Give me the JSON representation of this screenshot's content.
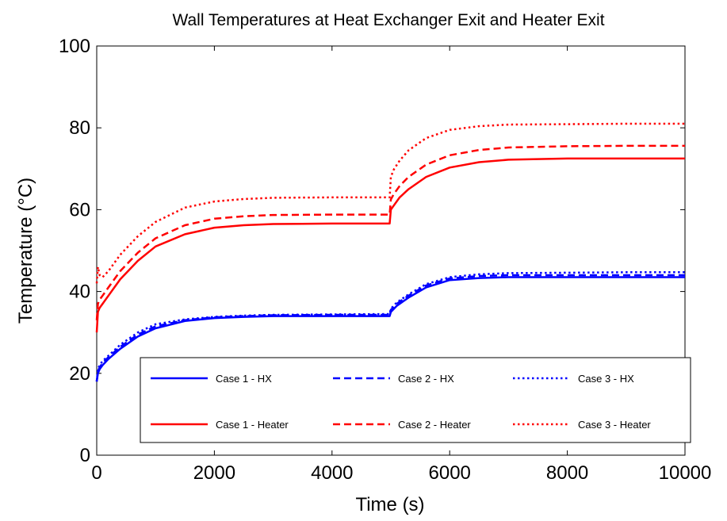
{
  "chart_data": {
    "type": "line",
    "title": "Wall Temperatures at Heat Exchanger Exit and Heater Exit",
    "xlabel": "Time (s)",
    "ylabel": "Temperature (°C)",
    "xlim": [
      0,
      10000
    ],
    "ylim": [
      0,
      100
    ],
    "xticks": [
      "0",
      "2000",
      "4000",
      "6000",
      "8000",
      "10000"
    ],
    "yticks": [
      "0",
      "20",
      "40",
      "60",
      "80",
      "100"
    ],
    "grid": false,
    "legend_position": "bottom-right",
    "series": [
      {
        "name": "Case 1 - HX",
        "color": "#0000ff",
        "dash": "solid",
        "x": [
          0,
          20,
          50,
          100,
          200,
          400,
          700,
          1000,
          1500,
          2000,
          2500,
          3000,
          4000,
          4980,
          5000,
          5100,
          5300,
          5600,
          6000,
          6500,
          7000,
          8000,
          9000,
          10000
        ],
        "y": [
          18,
          20,
          21,
          22,
          23.5,
          26,
          29,
          31,
          32.8,
          33.5,
          33.8,
          34,
          34,
          34,
          35,
          36.5,
          38.5,
          41,
          42.8,
          43.3,
          43.5,
          43.5,
          43.5,
          43.5
        ]
      },
      {
        "name": "Case 2 - HX",
        "color": "#0000ff",
        "dash": "dashed",
        "x": [
          0,
          20,
          50,
          100,
          200,
          400,
          700,
          1000,
          1500,
          2000,
          2500,
          3000,
          4000,
          4980,
          5000,
          5100,
          5300,
          5600,
          6000,
          6500,
          7000,
          8000,
          9000,
          10000
        ],
        "y": [
          18,
          20.5,
          21.5,
          22.5,
          24,
          26.5,
          29.5,
          31.5,
          33,
          33.7,
          34,
          34.2,
          34.3,
          34.3,
          35.5,
          37,
          39,
          41.5,
          43.2,
          43.8,
          44,
          44,
          44,
          44
        ]
      },
      {
        "name": "Case 3 - HX",
        "color": "#0000ff",
        "dash": "dotted",
        "x": [
          0,
          20,
          50,
          100,
          200,
          400,
          700,
          1000,
          1500,
          2000,
          2500,
          3000,
          4000,
          4980,
          5000,
          5100,
          5300,
          5600,
          6000,
          6500,
          7000,
          8000,
          9000,
          10000
        ],
        "y": [
          18,
          21,
          22,
          23,
          24.3,
          27,
          30,
          32,
          33.2,
          33.8,
          34.1,
          34.3,
          34.4,
          34.5,
          35.8,
          37.3,
          39.3,
          41.8,
          43.5,
          44.2,
          44.5,
          44.6,
          44.7,
          44.7
        ]
      },
      {
        "name": "Case 1 - Heater",
        "color": "#ff0000",
        "dash": "solid",
        "x": [
          0,
          20,
          50,
          100,
          200,
          400,
          700,
          1000,
          1500,
          2000,
          2500,
          3000,
          4000,
          4980,
          5000,
          5050,
          5150,
          5300,
          5600,
          6000,
          6500,
          7000,
          8000,
          9000,
          10000
        ],
        "y": [
          30,
          35,
          36,
          37,
          39,
          43,
          47.5,
          51,
          54,
          55.6,
          56.2,
          56.5,
          56.6,
          56.6,
          60,
          61,
          63,
          65,
          68,
          70.3,
          71.6,
          72.2,
          72.5,
          72.5,
          72.5
        ]
      },
      {
        "name": "Case 2 - Heater",
        "color": "#ff0000",
        "dash": "dashed",
        "x": [
          0,
          20,
          50,
          100,
          200,
          400,
          700,
          1000,
          1500,
          2000,
          2500,
          3000,
          4000,
          4980,
          5000,
          5050,
          5150,
          5300,
          5600,
          6000,
          6500,
          7000,
          8000,
          9000,
          10000
        ],
        "y": [
          33,
          37,
          38,
          39,
          41,
          45,
          49.5,
          53,
          56.2,
          57.8,
          58.4,
          58.7,
          58.8,
          58.8,
          62.5,
          63.8,
          65.8,
          68,
          71,
          73.3,
          74.6,
          75.2,
          75.5,
          75.6,
          75.6
        ]
      },
      {
        "name": "Case 3 - Heater",
        "color": "#ff0000",
        "dash": "dotted",
        "x": [
          0,
          20,
          50,
          100,
          200,
          400,
          700,
          1000,
          1500,
          2000,
          2500,
          3000,
          4000,
          4980,
          5000,
          5050,
          5150,
          5300,
          5600,
          6000,
          6500,
          7000,
          8000,
          9000,
          10000
        ],
        "y": [
          42,
          46,
          44,
          43.5,
          45,
          49,
          53.5,
          57,
          60.5,
          62,
          62.6,
          62.9,
          63,
          63,
          68,
          69.8,
          72,
          74.5,
          77.5,
          79.5,
          80.4,
          80.8,
          80.9,
          81,
          81
        ]
      }
    ]
  }
}
